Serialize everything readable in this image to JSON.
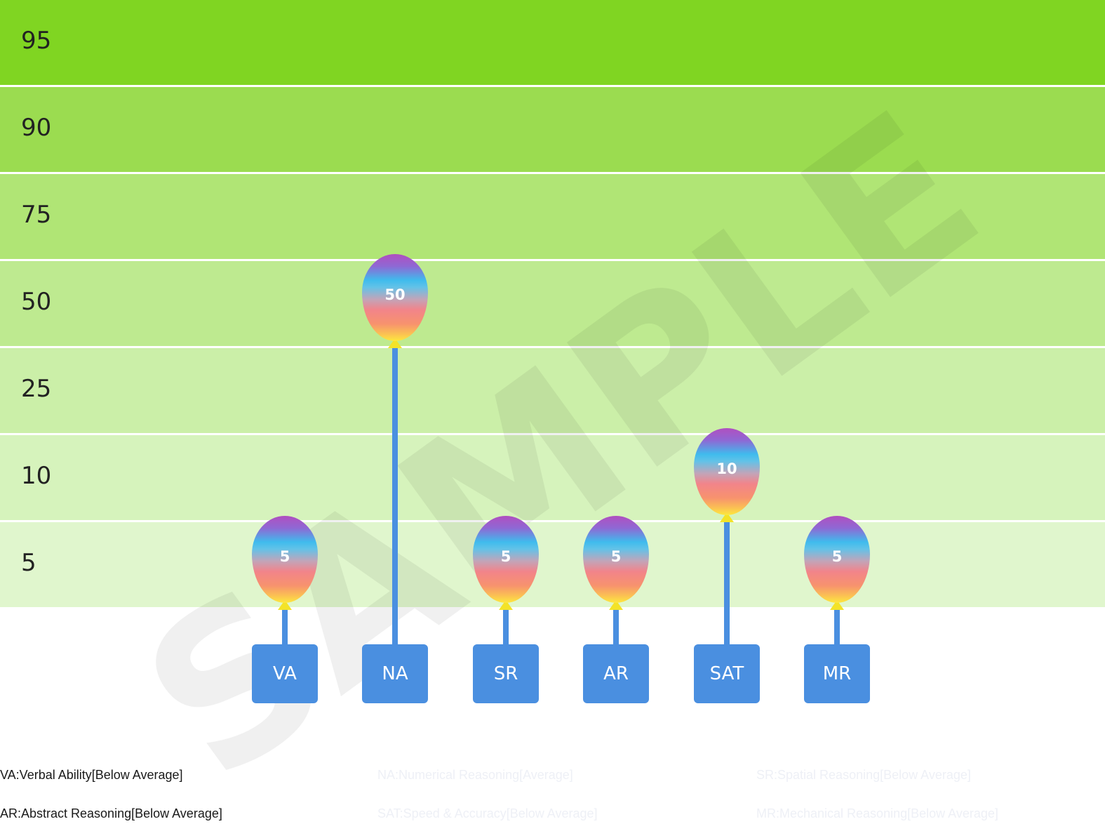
{
  "chart_data": {
    "type": "bar",
    "bands": [
      "95",
      "90",
      "75",
      "50",
      "25",
      "10",
      "5"
    ],
    "band_colors": [
      "#80d522",
      "#9bdc50",
      "#b0e575",
      "#beea90",
      "#cbefa8",
      "#d6f3bc",
      "#e0f6cd"
    ],
    "categories": [
      "VA",
      "NA",
      "SR",
      "AR",
      "SAT",
      "MR"
    ],
    "values": [
      5,
      50,
      5,
      5,
      10,
      5
    ],
    "value_labels": [
      "5",
      "50",
      "5",
      "5",
      "10",
      "5"
    ],
    "legend": [
      {
        "text": "VA:Verbal Ability[Below Average]",
        "faded": false
      },
      {
        "text": "NA:Numerical Reasoning[Average]",
        "faded": true
      },
      {
        "text": "SR:Spatial Reasoning[Below Average]",
        "faded": true
      },
      {
        "text": "AR:Abstract Reasoning[Below Average]",
        "faded": false
      },
      {
        "text": "SAT:Speed & Accuracy[Below Average]",
        "faded": true
      },
      {
        "text": "MR:Mechanical Reasoning[Below Average]",
        "faded": true
      }
    ],
    "watermark": "SAMPLE",
    "colors": {
      "string": "#4a8fe0",
      "tag": "#4a8fe0",
      "knot": "#f3e328"
    }
  }
}
